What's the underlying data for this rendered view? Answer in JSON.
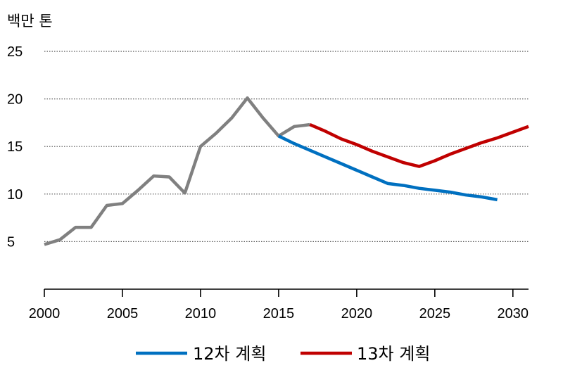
{
  "chart_data": {
    "type": "line",
    "ylabel": "백만 톤",
    "xlim": [
      2000,
      2031
    ],
    "ylim": [
      0,
      25
    ],
    "x_ticks": [
      2000,
      2005,
      2010,
      2015,
      2020,
      2025,
      2030
    ],
    "y_ticks": [
      5,
      10,
      15,
      20,
      25
    ],
    "grid": "horizontal dotted",
    "legend_position": "bottom",
    "series": [
      {
        "id": "history",
        "color": "#808080",
        "points": [
          [
            2000,
            4.7
          ],
          [
            2001,
            5.2
          ],
          [
            2002,
            6.5
          ],
          [
            2003,
            6.5
          ],
          [
            2004,
            8.8
          ],
          [
            2005,
            9.0
          ],
          [
            2006,
            10.4
          ],
          [
            2007,
            11.9
          ],
          [
            2008,
            11.8
          ],
          [
            2009,
            10.1
          ],
          [
            2010,
            15.0
          ],
          [
            2011,
            16.4
          ],
          [
            2012,
            18.0
          ],
          [
            2013,
            20.1
          ],
          [
            2014,
            18.0
          ],
          [
            2015,
            16.1
          ],
          [
            2016,
            17.1
          ],
          [
            2017,
            17.3
          ]
        ]
      },
      {
        "id": "plan12",
        "name": "12차 계획",
        "color": "#0070C0",
        "points": [
          [
            2015,
            16.1
          ],
          [
            2016,
            15.3
          ],
          [
            2017,
            14.6
          ],
          [
            2018,
            13.9
          ],
          [
            2019,
            13.2
          ],
          [
            2020,
            12.5
          ],
          [
            2021,
            11.8
          ],
          [
            2022,
            11.1
          ],
          [
            2023,
            10.9
          ],
          [
            2024,
            10.6
          ],
          [
            2025,
            10.4
          ],
          [
            2026,
            10.2
          ],
          [
            2027,
            9.9
          ],
          [
            2028,
            9.7
          ],
          [
            2029,
            9.4
          ]
        ]
      },
      {
        "id": "plan13",
        "name": "13차 계획",
        "color": "#C00000",
        "points": [
          [
            2017,
            17.3
          ],
          [
            2018,
            16.6
          ],
          [
            2019,
            15.8
          ],
          [
            2020,
            15.2
          ],
          [
            2021,
            14.5
          ],
          [
            2022,
            13.9
          ],
          [
            2023,
            13.3
          ],
          [
            2024,
            12.9
          ],
          [
            2025,
            13.5
          ],
          [
            2026,
            14.2
          ],
          [
            2027,
            14.8
          ],
          [
            2028,
            15.4
          ],
          [
            2029,
            15.9
          ],
          [
            2030,
            16.5
          ],
          [
            2031,
            17.1
          ]
        ]
      }
    ]
  }
}
